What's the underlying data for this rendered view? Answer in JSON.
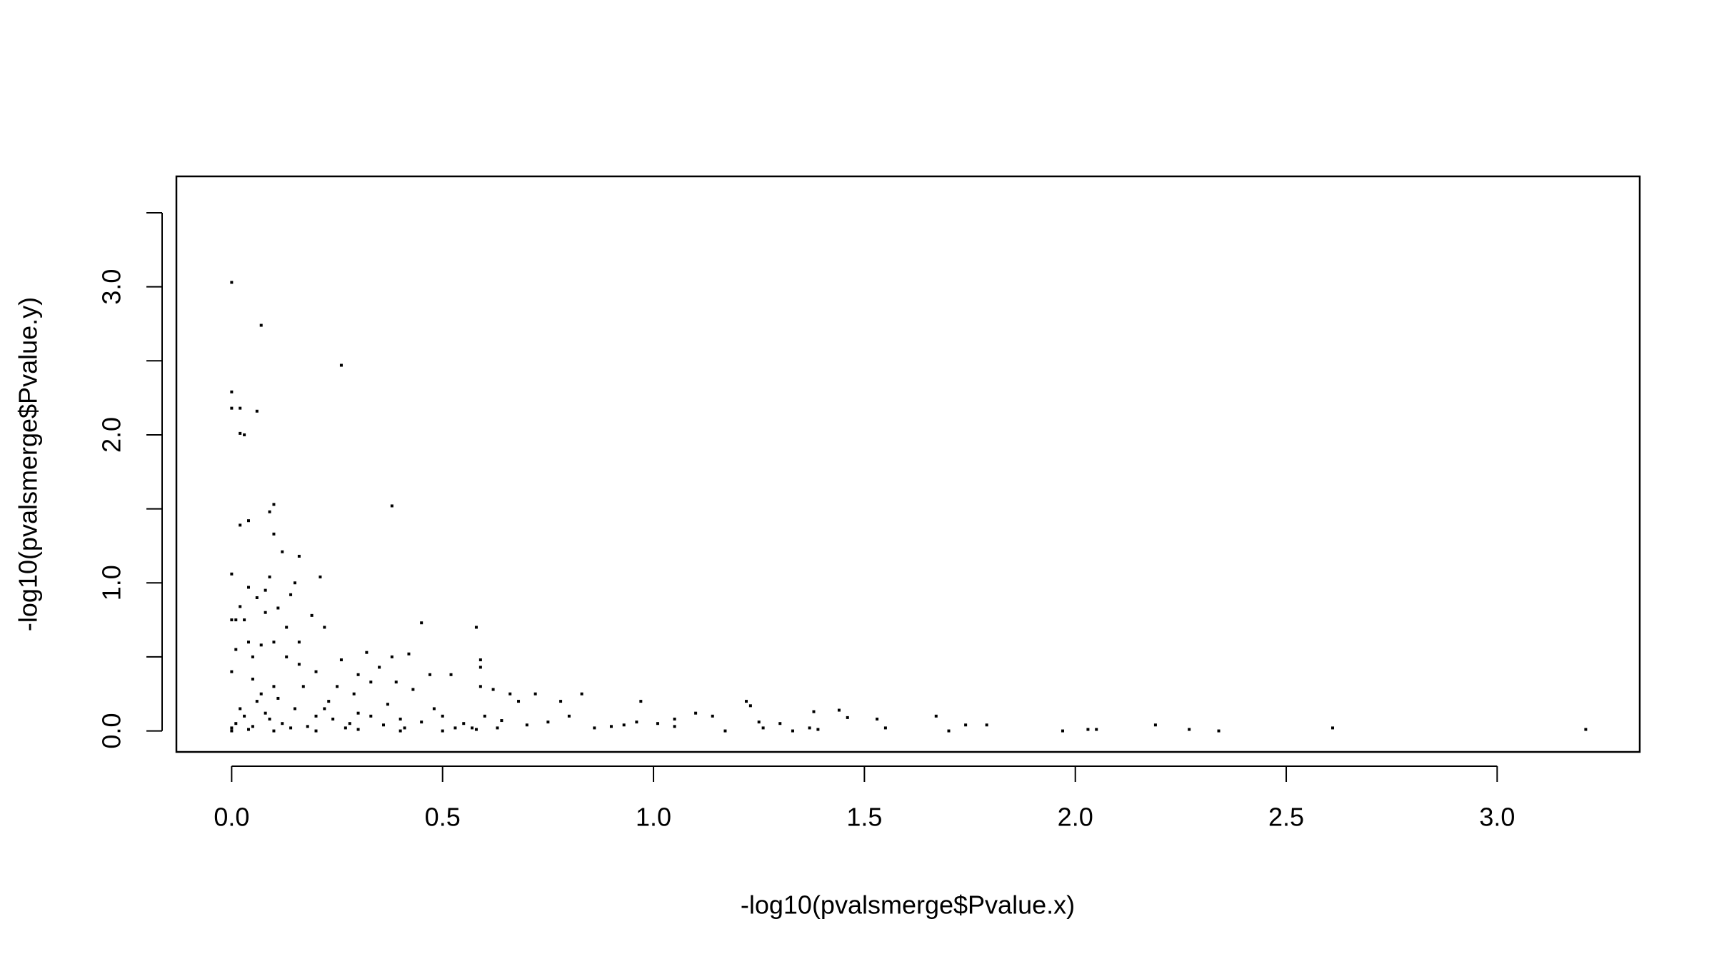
{
  "chart_data": {
    "type": "scatter",
    "xlabel": "-log10(pvalsmerge$Pvalue.x)",
    "ylabel": "-log10(pvalsmerge$Pvalue.y)",
    "color": "#000000",
    "xlim": [
      -0.131,
      3.338
    ],
    "ylim": [
      -0.142,
      3.746
    ],
    "xticks": [
      {
        "value": 0,
        "label": "0.0"
      },
      {
        "value": 0.5,
        "label": "0.5"
      },
      {
        "value": 1,
        "label": "1.0"
      },
      {
        "value": 1.5,
        "label": "1.5"
      },
      {
        "value": 2,
        "label": "2.0"
      },
      {
        "value": 2.5,
        "label": "2.5"
      },
      {
        "value": 3,
        "label": "3.0"
      }
    ],
    "yticks": [
      {
        "value": 0,
        "label": "0.0"
      },
      {
        "value": 1,
        "label": "1.0"
      },
      {
        "value": 2,
        "label": "2.0"
      },
      {
        "value": 3,
        "label": "3.0"
      }
    ],
    "yticks_unlabeled": [
      0.5,
      1.5,
      2.5,
      3.5
    ],
    "x": [
      0.0,
      0.07,
      0.26,
      0.0,
      0.0,
      0.02,
      0.06,
      0.03,
      0.02,
      0.1,
      0.09,
      0.38,
      0.04,
      0.02,
      0.1,
      0.12,
      0.16,
      0.0,
      0.21,
      0.09,
      0.15,
      0.04,
      0.06,
      0.14,
      0.02,
      0.0,
      0.01,
      0.03,
      0.08,
      0.11,
      0.19,
      0.22,
      0.45,
      0.58,
      0.04,
      0.07,
      0.1,
      0.16,
      0.13,
      0.26,
      0.32,
      0.38,
      0.42,
      0.59,
      0.59,
      0.47,
      0.52,
      0.3,
      0.35,
      0.2,
      0.0,
      0.05,
      0.1,
      0.17,
      0.25,
      0.33,
      0.39,
      0.43,
      0.59,
      0.62,
      0.66,
      0.72,
      0.83,
      0.68,
      0.78,
      0.97,
      1.22,
      1.23,
      1.1,
      1.14,
      1.38,
      1.44,
      1.46,
      1.53,
      1.67,
      1.74,
      1.79,
      1.55,
      1.7,
      1.97,
      2.03,
      2.05,
      2.19,
      2.27,
      2.34,
      2.61,
      3.21,
      1.25,
      1.26,
      1.3,
      1.33,
      1.37,
      1.39,
      1.01,
      1.05,
      1.05,
      1.17,
      0.9,
      0.93,
      0.96,
      0.86,
      0.8,
      0.75,
      0.7,
      0.64,
      0.55,
      0.5,
      0.45,
      0.4,
      0.36,
      0.3,
      0.28,
      0.24,
      0.2,
      0.18,
      0.15,
      0.12,
      0.08,
      0.05,
      0.02,
      0.0,
      0.01,
      0.03,
      0.06,
      0.09,
      0.14,
      0.22,
      0.27,
      0.33,
      0.37,
      0.41,
      0.48,
      0.53,
      0.58,
      0.6,
      0.63,
      0.0,
      0.04,
      0.1,
      0.2,
      0.3,
      0.4,
      0.5,
      0.57,
      0.07,
      0.11,
      0.16,
      0.13,
      0.08,
      0.23,
      0.29,
      0.01,
      0.05
    ],
    "y": [
      3.03,
      2.74,
      2.47,
      2.29,
      2.18,
      2.18,
      2.16,
      2.0,
      2.01,
      1.53,
      1.48,
      1.52,
      1.42,
      1.39,
      1.33,
      1.21,
      1.18,
      1.06,
      1.04,
      1.04,
      1.0,
      0.97,
      0.9,
      0.92,
      0.84,
      0.75,
      0.75,
      0.75,
      0.8,
      0.83,
      0.78,
      0.7,
      0.73,
      0.7,
      0.6,
      0.58,
      0.6,
      0.6,
      0.5,
      0.48,
      0.53,
      0.5,
      0.52,
      0.48,
      0.43,
      0.38,
      0.38,
      0.38,
      0.43,
      0.4,
      0.4,
      0.35,
      0.3,
      0.3,
      0.3,
      0.33,
      0.33,
      0.28,
      0.3,
      0.28,
      0.25,
      0.25,
      0.25,
      0.2,
      0.2,
      0.2,
      0.2,
      0.17,
      0.12,
      0.1,
      0.13,
      0.14,
      0.09,
      0.08,
      0.1,
      0.04,
      0.04,
      0.02,
      0.0,
      0.0,
      0.01,
      0.01,
      0.04,
      0.01,
      0.0,
      0.02,
      0.01,
      0.06,
      0.02,
      0.05,
      0.0,
      0.02,
      0.01,
      0.05,
      0.03,
      0.08,
      0.0,
      0.03,
      0.04,
      0.06,
      0.02,
      0.1,
      0.06,
      0.04,
      0.07,
      0.05,
      0.1,
      0.06,
      0.08,
      0.04,
      0.12,
      0.05,
      0.08,
      0.1,
      0.03,
      0.15,
      0.05,
      0.12,
      0.03,
      0.15,
      0.02,
      0.05,
      0.1,
      0.2,
      0.08,
      0.02,
      0.15,
      0.02,
      0.1,
      0.18,
      0.02,
      0.15,
      0.02,
      0.01,
      0.1,
      0.02,
      0.0,
      0.01,
      0.0,
      0.0,
      0.01,
      0.0,
      0.0,
      0.02,
      0.25,
      0.22,
      0.45,
      0.7,
      0.95,
      0.2,
      0.25,
      0.55,
      0.5
    ]
  }
}
